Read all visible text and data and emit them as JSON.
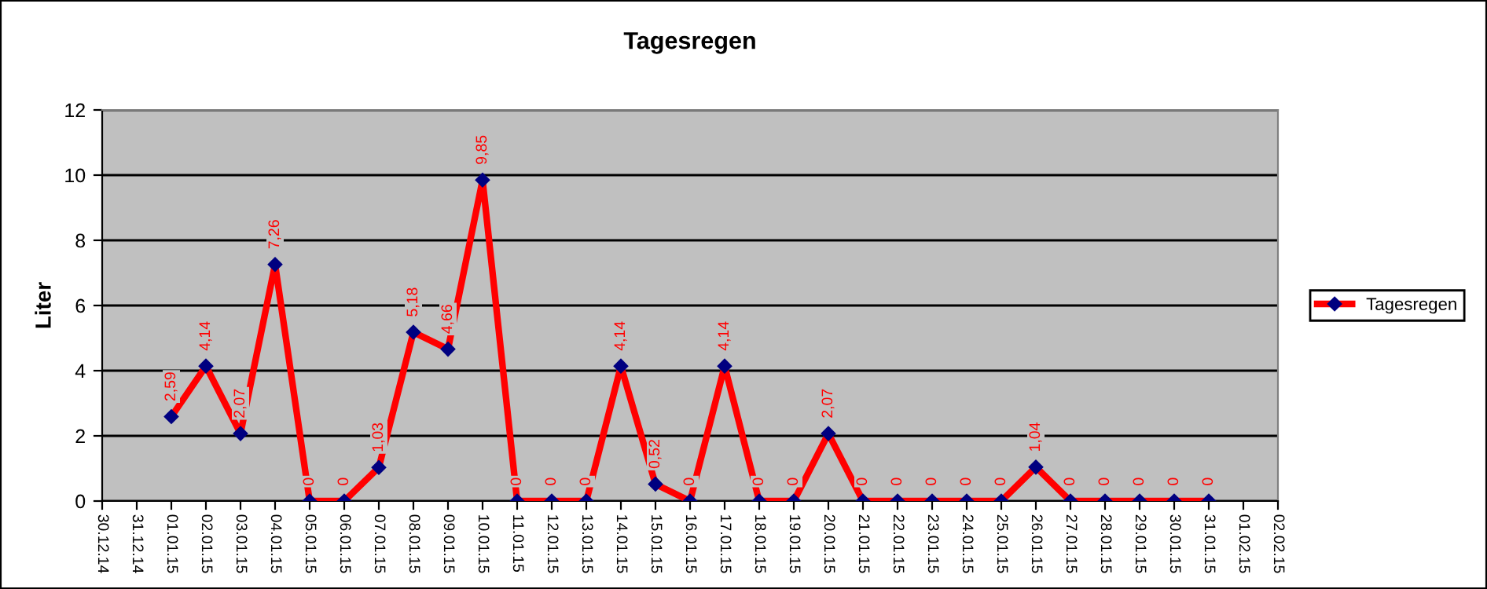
{
  "chart_data": {
    "type": "line",
    "title": "Tagesregen",
    "ylabel": "Liter",
    "categories": [
      "30.12.14",
      "31.12.14",
      "01.01.15",
      "02.01.15",
      "03.01.15",
      "04.01.15",
      "05.01.15",
      "06.01.15",
      "07.01.15",
      "08.01.15",
      "09.01.15",
      "10.01.15",
      "11.01.15",
      "12.01.15",
      "13.01.15",
      "14.01.15",
      "15.01.15",
      "16.01.15",
      "17.01.15",
      "18.01.15",
      "19.01.15",
      "20.01.15",
      "21.01.15",
      "22.01.15",
      "23.01.15",
      "24.01.15",
      "25.01.15",
      "26.01.15",
      "27.01.15",
      "28.01.15",
      "29.01.15",
      "30.01.15",
      "31.01.15",
      "01.02.15",
      "02.02.15"
    ],
    "series": [
      {
        "name": "Tagesregen",
        "color": "#ff0000",
        "values": [
          null,
          null,
          2.59,
          4.14,
          2.07,
          7.26,
          0,
          0,
          1.03,
          5.18,
          4.66,
          9.85,
          0,
          0,
          0,
          4.14,
          0.52,
          0,
          4.14,
          0,
          0,
          2.07,
          0,
          0,
          0,
          0,
          0,
          1.04,
          0,
          0,
          0,
          0,
          0,
          null,
          null
        ],
        "value_labels": [
          null,
          null,
          "2,59",
          "4,14",
          "2,07",
          "7,26",
          "0",
          "0",
          "1,03",
          "5,18",
          "4,66",
          "9,85",
          "0",
          "0",
          "0",
          "4,14",
          "0,52",
          "0",
          "4,14",
          "0",
          "0",
          "2,07",
          "0",
          "0",
          "0",
          "0",
          "0",
          "1,04",
          "0",
          "0",
          "0",
          "0",
          "0",
          null,
          null
        ]
      }
    ],
    "ylim": [
      0,
      12
    ],
    "yticks": [
      0,
      2,
      4,
      6,
      8,
      10,
      12
    ],
    "grid": "y",
    "legend": "right",
    "marker": "diamond",
    "line_style": "solid"
  }
}
